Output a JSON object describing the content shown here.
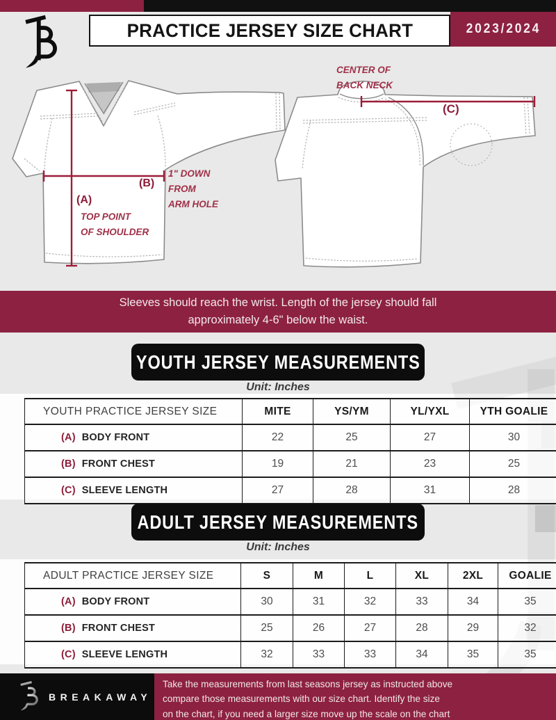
{
  "header": {
    "title": "PRACTICE JERSEY SIZE CHART",
    "season": "2023/2024"
  },
  "diagram": {
    "front": {
      "label_a": "(A)",
      "label_b": "(B)",
      "note_a": "TOP POINT\nOF SHOULDER",
      "note_b": "1\" DOWN\nFROM\nARM HOLE"
    },
    "back": {
      "label_c": "(C)",
      "note_c": "CENTER OF\nBACK NECK"
    }
  },
  "banner": {
    "text": "Sleeves should reach the wrist. Length of the jersey should fall\napproximately 4-6\" below the waist."
  },
  "youth": {
    "section_title": "YOUTH JERSEY MEASUREMENTS",
    "unit": "Unit: Inches",
    "table": {
      "corner": "YOUTH PRACTICE JERSEY SIZE",
      "sizes": [
        "MITE",
        "YS/YM",
        "YL/YXL",
        "YTH GOALIE"
      ],
      "rows": [
        {
          "key": "(A)",
          "label": "BODY FRONT",
          "values": [
            22,
            25,
            27,
            30
          ]
        },
        {
          "key": "(B)",
          "label": "FRONT CHEST",
          "values": [
            19,
            21,
            23,
            25
          ]
        },
        {
          "key": "(C)",
          "label": "SLEEVE LENGTH",
          "values": [
            27,
            28,
            31,
            28
          ]
        }
      ]
    }
  },
  "adult": {
    "section_title": "ADULT JERSEY MEASUREMENTS",
    "unit": "Unit: Inches",
    "table": {
      "corner": "ADULT PRACTICE JERSEY SIZE",
      "sizes": [
        "S",
        "M",
        "L",
        "XL",
        "2XL",
        "GOALIE"
      ],
      "rows": [
        {
          "key": "(A)",
          "label": "BODY FRONT",
          "values": [
            30,
            31,
            32,
            33,
            34,
            35
          ]
        },
        {
          "key": "(B)",
          "label": "FRONT CHEST",
          "values": [
            25,
            26,
            27,
            28,
            29,
            32
          ]
        },
        {
          "key": "(C)",
          "label": "SLEEVE LENGTH",
          "values": [
            32,
            33,
            33,
            34,
            35,
            35
          ]
        }
      ]
    }
  },
  "footer": {
    "brand": "BREAKAWAY",
    "note": "Take the measurements from last seasons jersey as instructed above\ncompare those measurements  with our size chart. Identify the size\non the chart, if you need a larger size move up the scale on the chart"
  },
  "colors": {
    "maroon": "#8d2141",
    "measurement_line": "#9e1c39",
    "header_black": "#111111"
  }
}
